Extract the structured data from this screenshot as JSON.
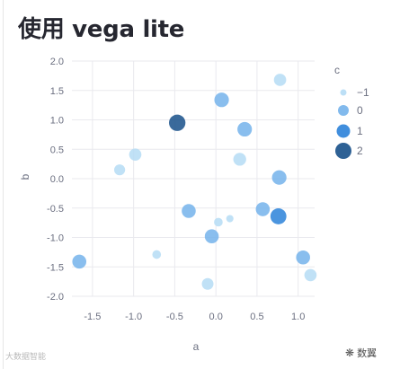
{
  "page": {
    "title": "使用 vega lite"
  },
  "watermarks": {
    "left_text": "大数据智能",
    "right_text": "数翼"
  },
  "chart_data": {
    "type": "scatter",
    "title": "",
    "xlabel": "a",
    "ylabel": "b",
    "xlim": [
      -1.75,
      1.2
    ],
    "ylim": [
      -2.0,
      2.0
    ],
    "xticks": [
      "-1.5",
      "-1.0",
      "-0.5",
      "0.0",
      "0.5",
      "1.0"
    ],
    "xtick_values": [
      -1.5,
      -1.0,
      -0.5,
      0.0,
      0.5,
      1.0
    ],
    "yticks": [
      "2.0",
      "1.5",
      "1.0",
      "0.5",
      "0.0",
      "-0.5",
      "-1.0",
      "-1.5",
      "-2.0"
    ],
    "ytick_values": [
      2.0,
      1.5,
      1.0,
      0.5,
      0.0,
      -0.5,
      -1.0,
      -1.5,
      -2.0
    ],
    "grid": true,
    "legend": {
      "title": "c",
      "placement": "right",
      "entries": [
        {
          "label": "−1",
          "c": -1,
          "color": "#b5dcf5"
        },
        {
          "label": "0",
          "c": 0,
          "color": "#74b3eb"
        },
        {
          "label": "1",
          "c": 1,
          "color": "#2b82d9"
        },
        {
          "label": "2",
          "c": 2,
          "color": "#17508a"
        }
      ]
    },
    "points": [
      {
        "a": 0.78,
        "b": 1.68,
        "c": -1,
        "size": 1.0
      },
      {
        "a": 0.07,
        "b": 1.34,
        "c": 0,
        "size": 1.4
      },
      {
        "a": -0.47,
        "b": 0.95,
        "c": 2,
        "size": 1.8
      },
      {
        "a": 0.35,
        "b": 0.84,
        "c": 0,
        "size": 1.4
      },
      {
        "a": -0.98,
        "b": 0.41,
        "c": -1,
        "size": 1.0
      },
      {
        "a": 0.29,
        "b": 0.33,
        "c": -1,
        "size": 1.1
      },
      {
        "a": -1.17,
        "b": 0.15,
        "c": -1,
        "size": 0.8
      },
      {
        "a": 0.77,
        "b": 0.02,
        "c": 0,
        "size": 1.4
      },
      {
        "a": -0.33,
        "b": -0.55,
        "c": 0,
        "size": 1.3
      },
      {
        "a": 0.57,
        "b": -0.52,
        "c": 0,
        "size": 1.3
      },
      {
        "a": 0.76,
        "b": -0.64,
        "c": 1,
        "size": 1.7
      },
      {
        "a": 0.03,
        "b": -0.74,
        "c": -1,
        "size": 0.5
      },
      {
        "a": 0.17,
        "b": -0.68,
        "c": -1,
        "size": 0.35
      },
      {
        "a": -0.05,
        "b": -0.98,
        "c": 0,
        "size": 1.3
      },
      {
        "a": -0.72,
        "b": -1.29,
        "c": -1,
        "size": 0.5
      },
      {
        "a": -1.66,
        "b": -1.41,
        "c": 0,
        "size": 1.3
      },
      {
        "a": 1.06,
        "b": -1.34,
        "c": 0,
        "size": 1.3
      },
      {
        "a": -0.1,
        "b": -1.79,
        "c": -1,
        "size": 0.9
      },
      {
        "a": 1.15,
        "b": -1.64,
        "c": -1,
        "size": 1.0
      }
    ]
  }
}
